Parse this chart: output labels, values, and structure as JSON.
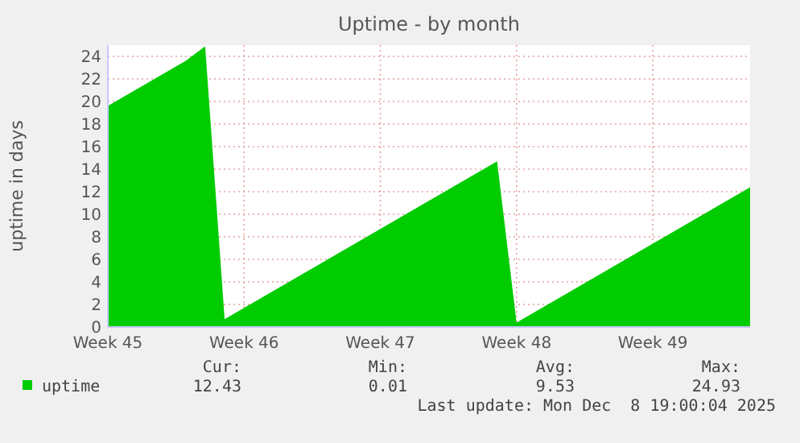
{
  "chart_data": {
    "type": "area",
    "title": "Uptime - by month",
    "ylabel": "uptime in days",
    "categories": [
      "Week 45",
      null,
      null,
      null,
      null,
      null,
      null,
      "Week 46",
      null,
      null,
      null,
      null,
      null,
      null,
      "Week 47",
      null,
      null,
      null,
      null,
      null,
      null,
      "Week 48",
      null,
      null,
      null,
      null,
      null,
      null,
      "Week 49",
      null,
      null,
      null,
      null,
      null
    ],
    "series": [
      {
        "name": "uptime",
        "color": "#00cc00",
        "values": [
          19.6,
          20.6,
          21.6,
          22.6,
          23.6,
          24.9,
          0.7,
          1.7,
          2.7,
          3.7,
          4.7,
          5.7,
          6.7,
          7.7,
          8.7,
          9.7,
          10.7,
          11.7,
          12.7,
          13.7,
          14.7,
          0.4,
          1.4,
          2.4,
          3.4,
          4.4,
          5.4,
          6.4,
          7.4,
          8.4,
          9.4,
          10.4,
          11.4,
          12.4
        ]
      }
    ],
    "ylim": [
      0,
      25
    ],
    "yticks": [
      0,
      2,
      4,
      6,
      8,
      10,
      12,
      14,
      16,
      18,
      20,
      22,
      24
    ],
    "grid": true,
    "legend": "bottom left",
    "annotations": [
      "Cur:",
      "12.43",
      "Min:",
      "0.01",
      "Avg:",
      "9.53",
      "Max:",
      "24.93",
      "Last update: Mon Dec  8 19:00:04 2025"
    ]
  }
}
